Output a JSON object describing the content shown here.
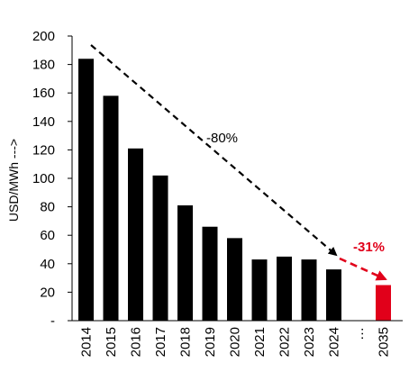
{
  "chart_data": {
    "type": "bar",
    "categories": [
      "2014",
      "2015",
      "2016",
      "2017",
      "2018",
      "2019",
      "2020",
      "2021",
      "2022",
      "2023",
      "2024",
      "…",
      "2035"
    ],
    "values": [
      184,
      158,
      121,
      102,
      81,
      66,
      58,
      43,
      45,
      43,
      36,
      null,
      25
    ],
    "ylabel": "USD/MWh --->",
    "xlabel": "",
    "ylim": [
      0,
      200
    ],
    "yticks": [
      "-",
      "20",
      "40",
      "60",
      "80",
      "100",
      "120",
      "140",
      "160",
      "180",
      "200"
    ],
    "grid": false,
    "colors": {
      "bar": "#000000",
      "highlight": "#e1001a",
      "text": "#000000"
    },
    "highlight_category": "2035",
    "annotations": [
      {
        "text": "-80%",
        "from": "2014",
        "to": "2024",
        "color": "#000000",
        "style": "dashed-arrow"
      },
      {
        "text": "-31%",
        "from": "2024",
        "to": "2035",
        "color": "#e1001a",
        "style": "dashed-arrow"
      }
    ]
  }
}
